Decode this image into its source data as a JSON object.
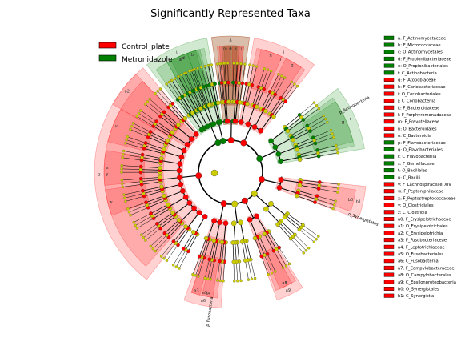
{
  "chart_data": {
    "type": "cladogram",
    "title": "Significantly Represented Taxa",
    "colors": {
      "control": "#ff0000",
      "metro": "#008000",
      "nonsig": "#cccc00",
      "line": "#000000"
    },
    "legend": {
      "placement": "top-left",
      "entries": [
        {
          "name": "Control_plate",
          "color": "#ff0000"
        },
        {
          "name": "Metronidazole",
          "color": "#008000"
        }
      ]
    },
    "taxa_key": [
      {
        "label": "a: F_Actinomycetaceae",
        "group": "metro"
      },
      {
        "label": "b: F_Micrococcaceae",
        "group": "metro"
      },
      {
        "label": "c: O_Actinomycetales",
        "group": "metro"
      },
      {
        "label": "d: F_Propionibacteriaceae",
        "group": "metro"
      },
      {
        "label": "e: O_Propionibacteriales",
        "group": "metro"
      },
      {
        "label": "f: C_Actinobacteria",
        "group": "metro"
      },
      {
        "label": "g: F_Atopobiaceae",
        "group": "control"
      },
      {
        "label": "h: F_Coriobacteriaceae",
        "group": "control"
      },
      {
        "label": "i: O_Coriobacteriales",
        "group": "control"
      },
      {
        "label": "j: C_Coriobacteriia",
        "group": "control"
      },
      {
        "label": "k: F_Bacteroidaceae",
        "group": "control"
      },
      {
        "label": "l: F_Porphyromonadaceae",
        "group": "control"
      },
      {
        "label": "m: F_Prevotellaceae",
        "group": "control"
      },
      {
        "label": "n: O_Bacteroidales",
        "group": "control"
      },
      {
        "label": "o: C_Bacteroidia",
        "group": "control"
      },
      {
        "label": "p: F_Flavobacteriaceae",
        "group": "metro"
      },
      {
        "label": "q: O_Flavobacteriales",
        "group": "metro"
      },
      {
        "label": "r: C_Flavobacteriia",
        "group": "metro"
      },
      {
        "label": "s: F_Gemellaceae",
        "group": "metro"
      },
      {
        "label": "t: O_Bacillales",
        "group": "metro"
      },
      {
        "label": "u: C_Bacilli",
        "group": "metro"
      },
      {
        "label": "v: F_Lachnospiraceae_XIV",
        "group": "control"
      },
      {
        "label": "w: F_Peptoniphilaceae",
        "group": "control"
      },
      {
        "label": "x: F_Peptostreptococcaceae",
        "group": "control"
      },
      {
        "label": "y: O_Clostridiales",
        "group": "control"
      },
      {
        "label": "z: C_Clostridia",
        "group": "control"
      },
      {
        "label": "a0: F_Erysipelotrichaceae",
        "group": "control"
      },
      {
        "label": "a1: O_Erysipelotrichales",
        "group": "control"
      },
      {
        "label": "a2: C_Erysipelotrichia",
        "group": "control"
      },
      {
        "label": "a3: F_Fusobacteriaceae",
        "group": "control"
      },
      {
        "label": "a4: F_Leptotrichiaceae",
        "group": "control"
      },
      {
        "label": "a5: O_Fusobacteriales",
        "group": "control"
      },
      {
        "label": "a6: C_Fusobacteriia",
        "group": "control"
      },
      {
        "label": "a7: F_Campylobacteraceae",
        "group": "control"
      },
      {
        "label": "a8: O_Campylobacterales",
        "group": "control"
      },
      {
        "label": "a9: C_Epsilonproteobacteria",
        "group": "control"
      },
      {
        "label": "b0: O_Synergistales",
        "group": "control"
      },
      {
        "label": "b1: C_Synergistia",
        "group": "control"
      }
    ],
    "phylum_labels": [
      {
        "text": "p_Actinobacteria",
        "angle": 62
      },
      {
        "text": "p_Synergistetes",
        "angle": 110
      },
      {
        "text": "p_Fusobacteria",
        "angle": 188
      }
    ],
    "clades": [
      {
        "key": "c",
        "group": "metro",
        "a1": -30,
        "a2": -15,
        "level": 1
      },
      {
        "key": "a",
        "group": "metro",
        "a1": -28,
        "a2": -20,
        "level": 2
      },
      {
        "key": "b",
        "group": "metro",
        "a1": -20,
        "a2": -16,
        "level": 2
      },
      {
        "key": "f",
        "group": "metro",
        "a1": -8,
        "a2": 8,
        "level": 0
      },
      {
        "key": "e",
        "group": "metro",
        "a1": -4,
        "a2": 4,
        "level": 1
      },
      {
        "key": "d",
        "group": "metro",
        "a1": -3,
        "a2": 3,
        "level": 2
      },
      {
        "key": "j",
        "group": "control",
        "a1": 10,
        "a2": 38,
        "level": 0
      },
      {
        "key": "i",
        "group": "control",
        "a1": 12,
        "a2": 36,
        "level": 1
      },
      {
        "key": "h",
        "group": "control",
        "a1": 14,
        "a2": 24,
        "level": 2
      },
      {
        "key": "g",
        "group": "control",
        "a1": 26,
        "a2": 34,
        "level": 2
      },
      {
        "key": "r",
        "group": "metro",
        "a1": 52,
        "a2": 80,
        "level": 0
      },
      {
        "key": "q",
        "group": "metro",
        "a1": 54,
        "a2": 78,
        "level": 1
      },
      {
        "key": "p",
        "group": "metro",
        "a1": 56,
        "a2": 76,
        "level": 2
      },
      {
        "key": "b1",
        "group": "control",
        "a1": 96,
        "a2": 110,
        "level": 0
      },
      {
        "key": "b0",
        "group": "control",
        "a1": 98,
        "a2": 108,
        "level": 1
      },
      {
        "key": "a9",
        "group": "control",
        "a1": 148,
        "a2": 160,
        "level": 0
      },
      {
        "key": "a8",
        "group": "control",
        "a1": 149,
        "a2": 159,
        "level": 1
      },
      {
        "key": "a7",
        "group": "control",
        "a1": 151,
        "a2": 157,
        "level": 2
      },
      {
        "key": "a6",
        "group": "control",
        "a1": 184,
        "a2": 200,
        "level": 0
      },
      {
        "key": "a5",
        "group": "control",
        "a1": 186,
        "a2": 198,
        "level": 1
      },
      {
        "key": "a4",
        "group": "control",
        "a1": 188,
        "a2": 193,
        "level": 2
      },
      {
        "key": "a3",
        "group": "control",
        "a1": 194,
        "a2": 198,
        "level": 2
      },
      {
        "key": "z",
        "group": "control",
        "a1": 218,
        "a2": 320,
        "level": 0
      },
      {
        "key": "y",
        "group": "control",
        "a1": 222,
        "a2": 316,
        "level": 1
      },
      {
        "key": "w",
        "group": "control",
        "a1": 250,
        "a2": 262,
        "level": 2
      },
      {
        "key": "x",
        "group": "control",
        "a1": 264,
        "a2": 280,
        "level": 2
      },
      {
        "key": "v",
        "group": "control",
        "a1": 284,
        "a2": 300,
        "level": 2
      },
      {
        "key": "a2",
        "group": "control",
        "a1": 300,
        "a2": 316,
        "level": 0
      },
      {
        "key": "u",
        "group": "metro",
        "a1": 322,
        "a2": 350,
        "level": 0
      },
      {
        "key": "t",
        "group": "metro",
        "a1": 324,
        "a2": 348,
        "level": 1
      },
      {
        "key": "s",
        "group": "metro",
        "a1": 330,
        "a2": 346,
        "level": 2
      },
      {
        "key": "o",
        "group": "control",
        "a1": 352,
        "a2": 368,
        "level": 0
      },
      {
        "key": "n",
        "group": "control",
        "a1": 354,
        "a2": 366,
        "level": 1
      },
      {
        "key": "m",
        "group": "control",
        "a1": 355,
        "a2": 360,
        "level": 2
      },
      {
        "key": "k",
        "group": "control",
        "a1": 361,
        "a2": 364,
        "level": 2
      },
      {
        "key": "l",
        "group": "control",
        "a1": 364,
        "a2": 366,
        "level": 2
      }
    ],
    "phyla": [
      {
        "a1": -35,
        "a2": 8,
        "group": "metro"
      },
      {
        "a1": 8,
        "a2": 40,
        "group": "control"
      },
      {
        "a1": 48,
        "a2": 82,
        "group": "metro"
      },
      {
        "a1": 94,
        "a2": 112,
        "group": "control"
      },
      {
        "a1": 124,
        "a2": 140,
        "group": "nonsig"
      },
      {
        "a1": 145,
        "a2": 162,
        "group": "control"
      },
      {
        "a1": 165,
        "a2": 180,
        "group": "nonsig"
      },
      {
        "a1": 182,
        "a2": 202,
        "group": "control"
      },
      {
        "a1": 206,
        "a2": 322,
        "group": "control"
      },
      {
        "a1": 322,
        "a2": 352,
        "group": "metro"
      },
      {
        "a1": 352,
        "a2": 370,
        "group": "control"
      }
    ]
  }
}
